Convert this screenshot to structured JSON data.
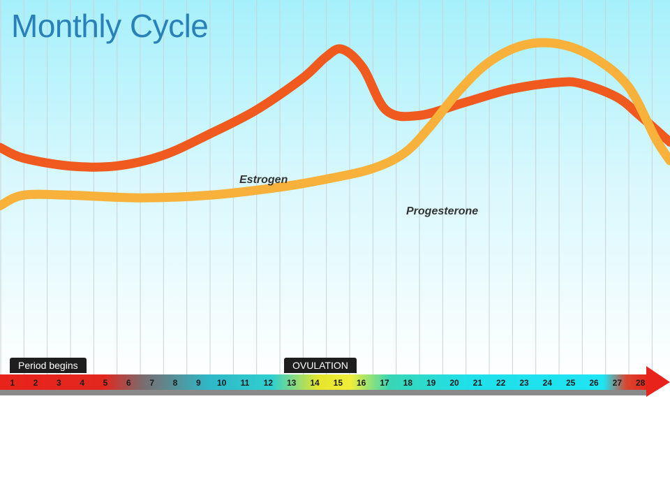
{
  "title": "Monthly Cycle",
  "markers": {
    "period_begins": "Period begins",
    "ovulation": "OVULATION"
  },
  "colors": {
    "estrogen": "#f05a1e",
    "progesterone": "#f8b13a",
    "title": "#2a80b9",
    "sky_top": "#a6f0fb",
    "sky_bottom": "#ffffff"
  },
  "chart_data": {
    "type": "line",
    "title": "Monthly Cycle",
    "xlabel": "",
    "ylabel": "",
    "x_axis": {
      "ticks": [
        "1",
        "2",
        "3",
        "4",
        "5",
        "6",
        "7",
        "8",
        "9",
        "10",
        "11",
        "12",
        "13",
        "14",
        "15",
        "16",
        "17",
        "18",
        "19",
        "20",
        "21",
        "22",
        "23",
        "24",
        "25",
        "26",
        "27",
        "28"
      ],
      "range": [
        0,
        28.8
      ]
    },
    "y_axis": {
      "range": [
        0,
        100
      ],
      "ticks_shown": false
    },
    "grid": "vertical",
    "series": [
      {
        "name": "Estrogen",
        "color": "#f05a1e",
        "points": [
          [
            0,
            55
          ],
          [
            1,
            51
          ],
          [
            3,
            48
          ],
          [
            5,
            48
          ],
          [
            7,
            52
          ],
          [
            9,
            60
          ],
          [
            11,
            69
          ],
          [
            13,
            81
          ],
          [
            14,
            89
          ],
          [
            14.7,
            92
          ],
          [
            15.6,
            85
          ],
          [
            16.6,
            69
          ],
          [
            18,
            67
          ],
          [
            20,
            72
          ],
          [
            22,
            77
          ],
          [
            24,
            79.5
          ],
          [
            25,
            79
          ],
          [
            26.5,
            74
          ],
          [
            27.5,
            67
          ],
          [
            28.8,
            57
          ]
        ]
      },
      {
        "name": "Progesterone",
        "color": "#f8b13a",
        "points": [
          [
            0,
            33
          ],
          [
            1,
            37
          ],
          [
            3,
            37
          ],
          [
            6,
            36
          ],
          [
            9,
            37
          ],
          [
            12,
            40
          ],
          [
            14,
            43
          ],
          [
            16,
            47
          ],
          [
            17.4,
            53
          ],
          [
            18.5,
            63
          ],
          [
            19.7,
            76
          ],
          [
            21,
            87
          ],
          [
            22.5,
            93.5
          ],
          [
            24,
            94
          ],
          [
            25.5,
            89
          ],
          [
            27,
            78
          ],
          [
            28.2,
            58
          ],
          [
            28.8,
            50
          ]
        ]
      }
    ]
  }
}
